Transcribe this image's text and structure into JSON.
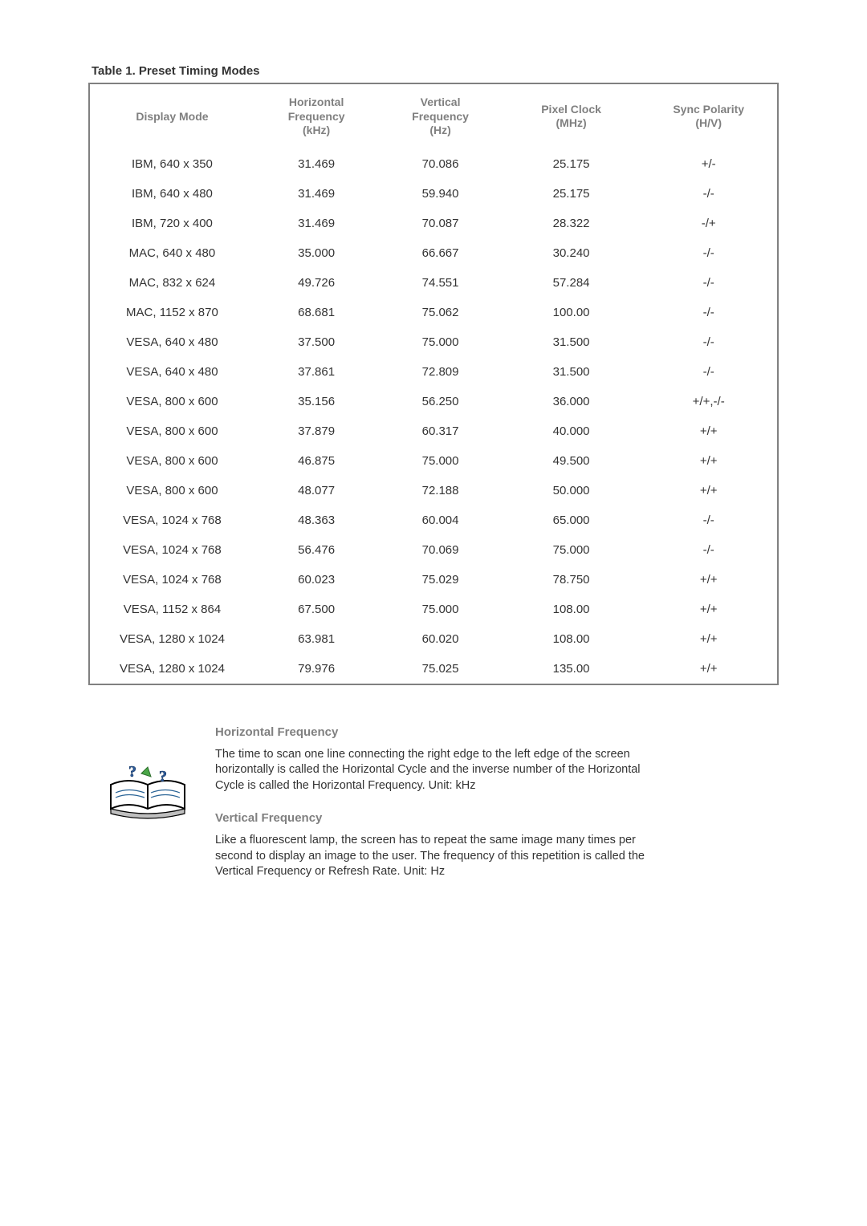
{
  "table": {
    "title": "Table 1. Preset Timing Modes",
    "columns": {
      "mode": "Display Mode",
      "hfreq": "Horizontal\nFrequency\n(kHz)",
      "vfreq": "Vertical\nFrequency\n(Hz)",
      "pclk": "Pixel Clock\n(MHz)",
      "sync": "Sync Polarity\n(H/V)"
    },
    "rows": [
      {
        "mode": "IBM, 640 x 350",
        "hfreq": "31.469",
        "vfreq": "70.086",
        "pclk": "25.175",
        "sync": "+/-"
      },
      {
        "mode": "IBM, 640 x 480",
        "hfreq": "31.469",
        "vfreq": "59.940",
        "pclk": "25.175",
        "sync": "-/-"
      },
      {
        "mode": "IBM, 720 x 400",
        "hfreq": "31.469",
        "vfreq": "70.087",
        "pclk": "28.322",
        "sync": "-/+"
      },
      {
        "mode": "MAC, 640 x 480",
        "hfreq": "35.000",
        "vfreq": "66.667",
        "pclk": "30.240",
        "sync": "-/-"
      },
      {
        "mode": "MAC, 832 x 624",
        "hfreq": "49.726",
        "vfreq": "74.551",
        "pclk": "57.284",
        "sync": "-/-"
      },
      {
        "mode": "MAC, 1152 x 870",
        "hfreq": "68.681",
        "vfreq": "75.062",
        "pclk": "100.00",
        "sync": "-/-"
      },
      {
        "mode": "VESA, 640 x 480",
        "hfreq": "37.500",
        "vfreq": "75.000",
        "pclk": "31.500",
        "sync": "-/-"
      },
      {
        "mode": "VESA, 640 x 480",
        "hfreq": "37.861",
        "vfreq": "72.809",
        "pclk": "31.500",
        "sync": "-/-"
      },
      {
        "mode": "VESA, 800 x 600",
        "hfreq": "35.156",
        "vfreq": "56.250",
        "pclk": "36.000",
        "sync": "+/+,-/-"
      },
      {
        "mode": "VESA, 800 x 600",
        "hfreq": "37.879",
        "vfreq": "60.317",
        "pclk": "40.000",
        "sync": "+/+"
      },
      {
        "mode": "VESA, 800 x 600",
        "hfreq": "46.875",
        "vfreq": "75.000",
        "pclk": "49.500",
        "sync": "+/+"
      },
      {
        "mode": "VESA, 800 x 600",
        "hfreq": "48.077",
        "vfreq": "72.188",
        "pclk": "50.000",
        "sync": "+/+"
      },
      {
        "mode": "VESA, 1024 x 768",
        "hfreq": "48.363",
        "vfreq": "60.004",
        "pclk": "65.000",
        "sync": "-/-"
      },
      {
        "mode": "VESA, 1024 x 768",
        "hfreq": "56.476",
        "vfreq": "70.069",
        "pclk": "75.000",
        "sync": "-/-"
      },
      {
        "mode": "VESA, 1024 x 768",
        "hfreq": "60.023",
        "vfreq": "75.029",
        "pclk": "78.750",
        "sync": "+/+"
      },
      {
        "mode": "VESA, 1152 x 864",
        "hfreq": "67.500",
        "vfreq": "75.000",
        "pclk": "108.00",
        "sync": "+/+"
      },
      {
        "mode": "VESA, 1280 x 1024",
        "hfreq": "63.981",
        "vfreq": "60.020",
        "pclk": "108.00",
        "sync": "+/+"
      },
      {
        "mode": "VESA, 1280 x 1024",
        "hfreq": "79.976",
        "vfreq": "75.025",
        "pclk": "135.00",
        "sync": "+/+"
      }
    ]
  },
  "explain": {
    "hfreq_title": "Horizontal Frequency",
    "hfreq_body": "The time to scan one line connecting the right edge to the left edge of the screen horizontally is called the Horizontal Cycle and the inverse number of the Horizontal Cycle is called the Horizontal Frequency. Unit: kHz",
    "vfreq_title": "Vertical Frequency",
    "vfreq_body": "Like a fluorescent lamp, the screen has to repeat the same image many times per second to display an image to the user. The frequency of this repetition is called the Vertical Frequency or Refresh Rate. Unit: Hz"
  }
}
